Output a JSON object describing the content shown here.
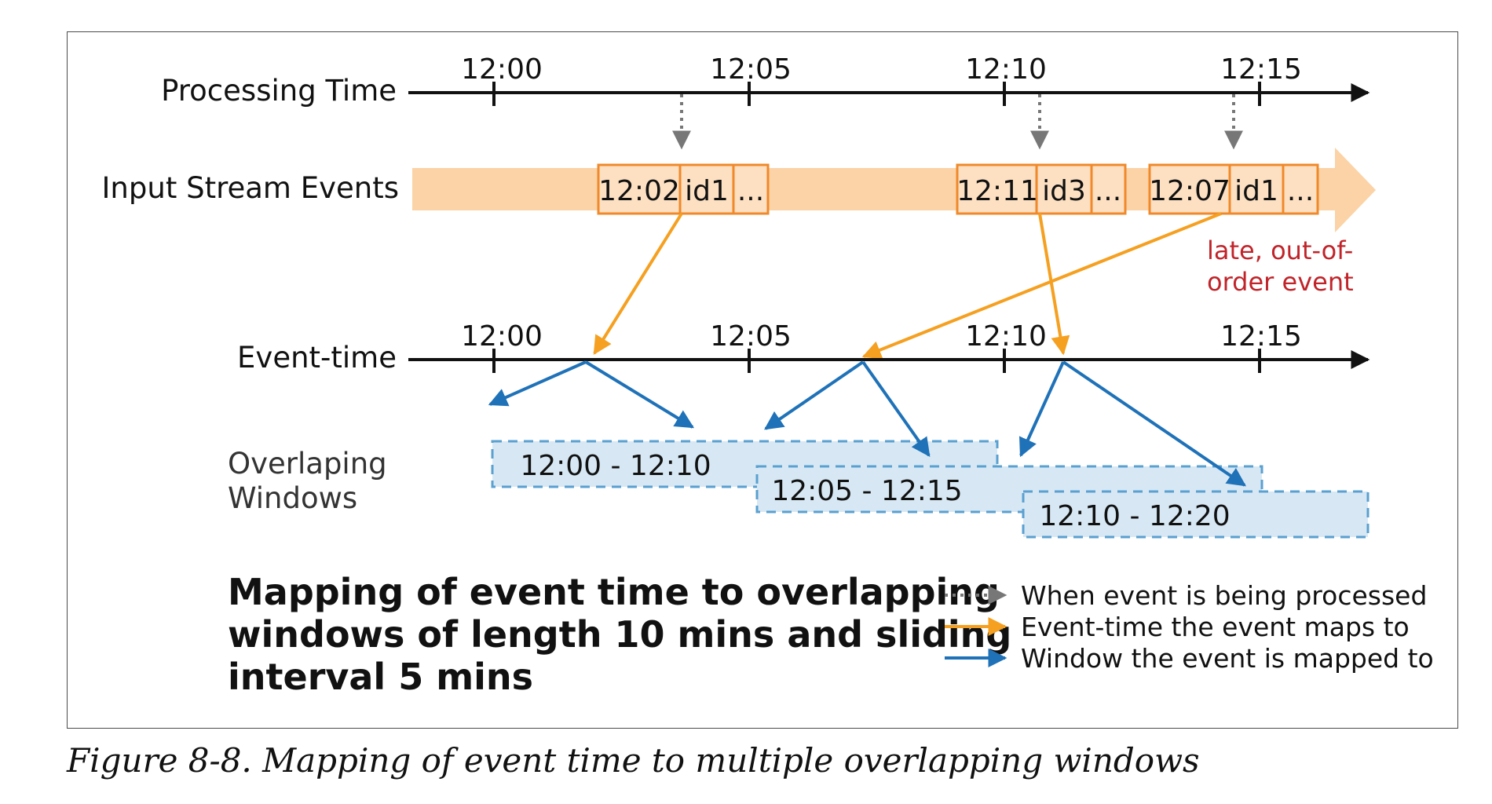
{
  "colors": {
    "stream_band": "#fbd3a6",
    "event_box_fill": "#fde0c2",
    "event_box_border": "#f0892a",
    "orange_arrow": "#f5a020",
    "blue_arrow": "#1f72b8",
    "window_fill": "#d7e8f4",
    "window_border": "#5aa0d0",
    "dotted_arrow": "#777777",
    "note_red": "#c0242a"
  },
  "diagram": {
    "processing_time_label": "Processing Time",
    "input_stream_label": "Input Stream Events",
    "event_time_label": "Event-time",
    "windows_label_line1": "Overlaping",
    "windows_label_line2": "Windows",
    "processing_ticks": [
      "12:00",
      "12:05",
      "12:10",
      "12:15"
    ],
    "event_ticks": [
      "12:00",
      "12:05",
      "12:10",
      "12:15"
    ],
    "events": [
      {
        "time": "12:02",
        "id": "id1",
        "more": "..."
      },
      {
        "time": "12:11",
        "id": "id3",
        "more": "..."
      },
      {
        "time": "12:07",
        "id": "id1",
        "more": "..."
      }
    ],
    "late_note_line1": "late, out-of-",
    "late_note_line2": "order event",
    "windows": [
      "12:00 - 12:10",
      "12:05 - 12:15",
      "12:10 - 12:20"
    ],
    "title_line1": "Mapping of event time to overlapping",
    "title_line2": "windows of length 10 mins and sliding",
    "title_line3": "interval 5 mins",
    "legend": [
      {
        "icon": "dotted-arrow-icon",
        "text": "When event is being processed"
      },
      {
        "icon": "orange-arrow-icon",
        "text": "Event-time the event maps to"
      },
      {
        "icon": "blue-arrow-icon",
        "text": "Window the event is mapped to"
      }
    ]
  },
  "caption": "Figure 8-8. Mapping of event time to multiple overlapping windows"
}
